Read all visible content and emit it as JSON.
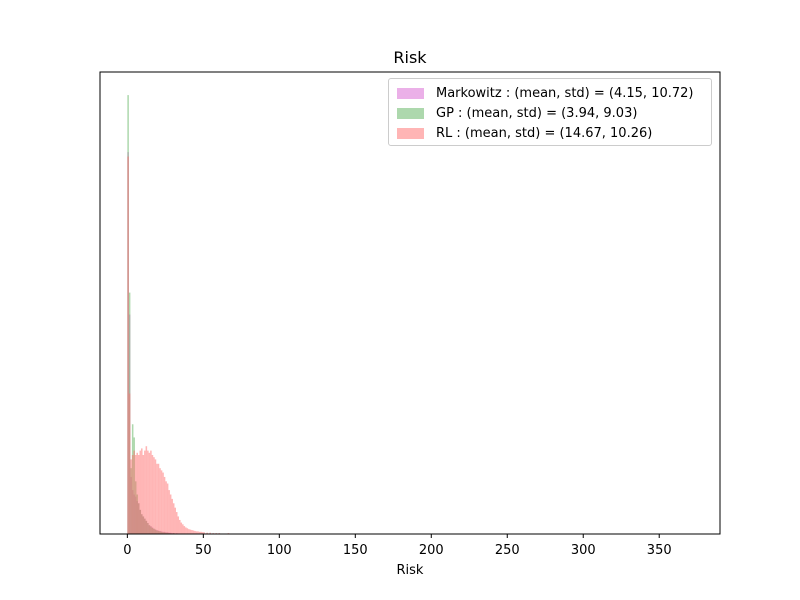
{
  "chart_data": {
    "type": "bar",
    "title": "Risk",
    "xlabel": "Risk",
    "ylabel": "",
    "xlim": [
      -18,
      390
    ],
    "ylim": [
      0,
      1.0
    ],
    "y_ticks_visible": false,
    "grid": false,
    "legend_position": "top-right",
    "xticks": [
      "0",
      "50",
      "100",
      "150",
      "200",
      "250",
      "300",
      "350"
    ],
    "series": [
      {
        "name": "Markowitz : (mean, std) = (4.15, 10.72)",
        "color": "#da70d6",
        "opacity": 0.55,
        "bin_width": 1.0,
        "bins": [
          [
            0,
            0.87
          ],
          [
            1,
            0.5
          ],
          [
            2,
            0.13
          ],
          [
            3,
            0.1
          ],
          [
            4,
            0.09
          ],
          [
            5,
            0.085
          ],
          [
            6,
            0.075
          ],
          [
            7,
            0.07
          ],
          [
            8,
            0.055
          ],
          [
            9,
            0.045
          ],
          [
            10,
            0.04
          ],
          [
            11,
            0.035
          ],
          [
            12,
            0.03
          ],
          [
            13,
            0.025
          ],
          [
            14,
            0.02
          ],
          [
            15,
            0.018
          ],
          [
            16,
            0.015
          ],
          [
            17,
            0.012
          ],
          [
            18,
            0.01
          ],
          [
            19,
            0.009
          ],
          [
            20,
            0.008
          ],
          [
            21,
            0.007
          ],
          [
            22,
            0.006
          ],
          [
            23,
            0.005
          ],
          [
            24,
            0.005
          ],
          [
            25,
            0.004
          ],
          [
            26,
            0.004
          ],
          [
            27,
            0.003
          ],
          [
            28,
            0.003
          ],
          [
            29,
            0.002
          ],
          [
            30,
            0.002
          ],
          [
            32,
            0.002
          ],
          [
            35,
            0.001
          ],
          [
            40,
            0.001
          ],
          [
            45,
            0.001
          ]
        ]
      },
      {
        "name": "GP : (mean, std) = (3.94, 9.03)",
        "color": "#6ab86a",
        "opacity": 0.55,
        "bin_width": 1.0,
        "bins": [
          [
            0,
            1.0
          ],
          [
            1,
            0.55
          ],
          [
            2,
            0.15
          ],
          [
            3,
            0.25
          ],
          [
            4,
            0.22
          ],
          [
            5,
            0.12
          ],
          [
            6,
            0.09
          ],
          [
            7,
            0.07
          ],
          [
            8,
            0.055
          ],
          [
            9,
            0.045
          ],
          [
            10,
            0.04
          ],
          [
            11,
            0.035
          ],
          [
            12,
            0.03
          ],
          [
            13,
            0.025
          ],
          [
            14,
            0.02
          ],
          [
            15,
            0.017
          ],
          [
            16,
            0.014
          ],
          [
            17,
            0.012
          ],
          [
            18,
            0.01
          ],
          [
            19,
            0.008
          ],
          [
            20,
            0.007
          ],
          [
            21,
            0.006
          ],
          [
            22,
            0.005
          ],
          [
            23,
            0.004
          ],
          [
            24,
            0.004
          ],
          [
            25,
            0.003
          ],
          [
            26,
            0.003
          ],
          [
            27,
            0.002
          ],
          [
            28,
            0.002
          ],
          [
            30,
            0.002
          ],
          [
            33,
            0.001
          ],
          [
            38,
            0.001
          ]
        ]
      },
      {
        "name": "RL : (mean, std) = (14.67, 10.26)",
        "color": "#ff6b6b",
        "opacity": 0.5,
        "bin_width": 1.0,
        "bins": [
          [
            0,
            0.86
          ],
          [
            1,
            0.32
          ],
          [
            2,
            0.17
          ],
          [
            3,
            0.18
          ],
          [
            4,
            0.19
          ],
          [
            5,
            0.18
          ],
          [
            6,
            0.185
          ],
          [
            7,
            0.18
          ],
          [
            8,
            0.19
          ],
          [
            9,
            0.195
          ],
          [
            10,
            0.18
          ],
          [
            11,
            0.19
          ],
          [
            12,
            0.2
          ],
          [
            13,
            0.19
          ],
          [
            14,
            0.185
          ],
          [
            15,
            0.19
          ],
          [
            16,
            0.18
          ],
          [
            17,
            0.175
          ],
          [
            18,
            0.17
          ],
          [
            19,
            0.16
          ],
          [
            20,
            0.16
          ],
          [
            21,
            0.15
          ],
          [
            22,
            0.145
          ],
          [
            23,
            0.14
          ],
          [
            24,
            0.13
          ],
          [
            25,
            0.12
          ],
          [
            26,
            0.115
          ],
          [
            27,
            0.1
          ],
          [
            28,
            0.09
          ],
          [
            29,
            0.08
          ],
          [
            30,
            0.07
          ],
          [
            31,
            0.06
          ],
          [
            32,
            0.05
          ],
          [
            33,
            0.04
          ],
          [
            34,
            0.032
          ],
          [
            35,
            0.026
          ],
          [
            36,
            0.022
          ],
          [
            37,
            0.018
          ],
          [
            38,
            0.015
          ],
          [
            39,
            0.013
          ],
          [
            40,
            0.011
          ],
          [
            41,
            0.01
          ],
          [
            42,
            0.009
          ],
          [
            43,
            0.008
          ],
          [
            44,
            0.007
          ],
          [
            45,
            0.006
          ],
          [
            46,
            0.006
          ],
          [
            47,
            0.005
          ],
          [
            48,
            0.005
          ],
          [
            49,
            0.004
          ],
          [
            50,
            0.004
          ],
          [
            52,
            0.003
          ],
          [
            54,
            0.003
          ],
          [
            56,
            0.002
          ],
          [
            58,
            0.002
          ],
          [
            60,
            0.002
          ],
          [
            63,
            0.001
          ],
          [
            66,
            0.002
          ],
          [
            70,
            0.001
          ]
        ]
      }
    ]
  }
}
